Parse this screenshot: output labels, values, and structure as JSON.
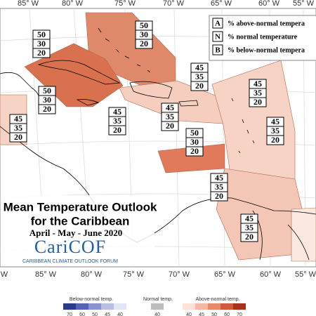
{
  "map": {
    "top_labels": [
      "85° W",
      "80° W",
      "75° W",
      "70° W",
      "65° W",
      "60° W",
      "55° W"
    ],
    "bottom_labels": [
      "W",
      "85° W",
      "80° W",
      "75° W",
      "70° W",
      "65° W",
      "60° W",
      "55° W"
    ]
  },
  "key": [
    {
      "letter": "A",
      "text": "% above-normal tempera"
    },
    {
      "letter": "N",
      "text": "% normal temperature"
    },
    {
      "letter": "B",
      "text": "% below-normal tempera"
    }
  ],
  "outlooks": [
    [
      50,
      30,
      20
    ],
    [
      50,
      30,
      20
    ],
    [
      50,
      30,
      20
    ],
    [
      45,
      35,
      20
    ],
    [
      45,
      35,
      20
    ],
    [
      45,
      35,
      20
    ],
    [
      45,
      35,
      20
    ],
    [
      45,
      35,
      20
    ],
    [
      45,
      35,
      20
    ],
    [
      50,
      30,
      20
    ],
    [
      45,
      35,
      20
    ],
    [
      45,
      35,
      20
    ]
  ],
  "title": {
    "line1": "Mean Temperature Outlook",
    "line2": "for the Caribbean",
    "season": "April - May - June 2020"
  },
  "logo": {
    "name": "CariCOF",
    "tagline": "CARIBBEAN CLIMATE OUTLOOK FORUM"
  },
  "colorbar": {
    "below": {
      "label": "Below-normal temp.",
      "ticks": [
        70,
        60,
        50,
        45,
        40
      ],
      "colors": [
        "#2b3a8c",
        "#5662b3",
        "#8a93cf",
        "#b9bfe3",
        "#e3e6f5"
      ]
    },
    "normal": {
      "label": "Normal temp.",
      "ticks": [
        40
      ],
      "colors": [
        "#bdbdbd"
      ]
    },
    "above": {
      "label": "Above-normal temp.",
      "ticks": [
        40,
        45,
        50,
        60,
        70
      ],
      "colors": [
        "#fbe3da",
        "#f4b9a5",
        "#e8896b",
        "#d2593b",
        "#a8311c"
      ]
    }
  }
}
